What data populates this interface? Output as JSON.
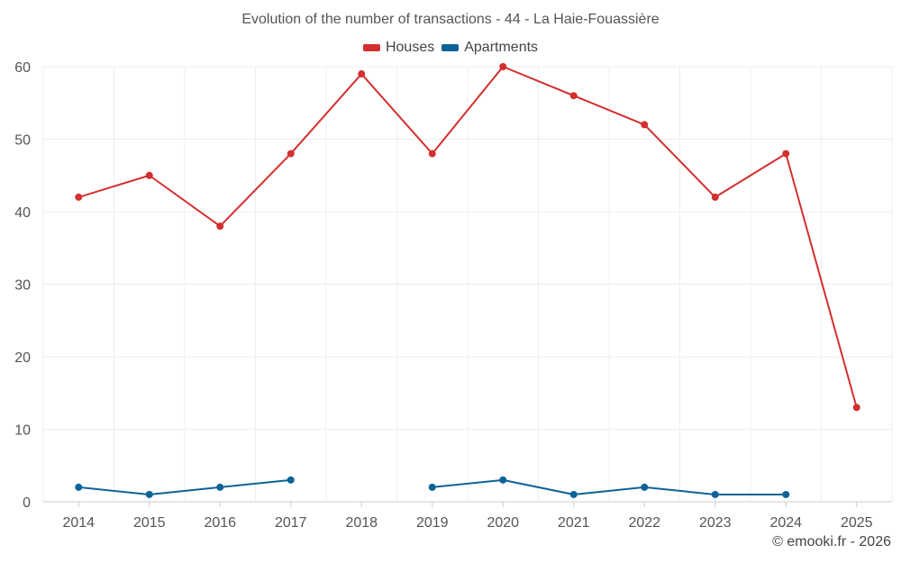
{
  "chart_data": {
    "type": "line",
    "title": "Evolution of the number of transactions - 44 - La Haie-Fouassière",
    "categories": [
      "2014",
      "2015",
      "2016",
      "2017",
      "2018",
      "2019",
      "2020",
      "2021",
      "2022",
      "2023",
      "2024",
      "2025"
    ],
    "ylim": [
      0,
      60
    ],
    "yticks": [
      0,
      10,
      20,
      30,
      40,
      50,
      60
    ],
    "grid": true,
    "legend_position": "top-center",
    "series": [
      {
        "name": "Houses",
        "color": "#d32f2f",
        "values": [
          42,
          45,
          38,
          48,
          59,
          48,
          60,
          56,
          52,
          42,
          48,
          13
        ]
      },
      {
        "name": "Apartments",
        "color": "#0d6397",
        "values": [
          2,
          1,
          2,
          3,
          null,
          2,
          3,
          1,
          2,
          1,
          1,
          null
        ]
      }
    ],
    "credit": "© emooki.fr - 2026"
  }
}
